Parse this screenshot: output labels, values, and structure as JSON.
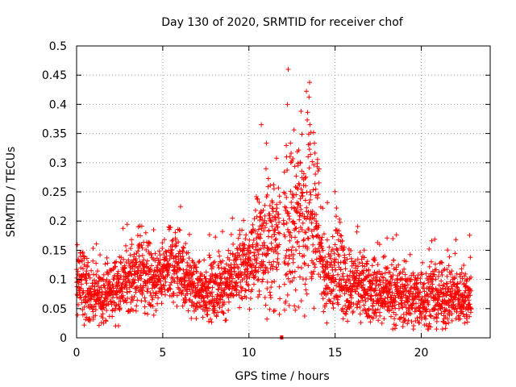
{
  "chart_data": {
    "type": "scatter",
    "title": "Day 130 of 2020, SRMTID for receiver chof",
    "xlabel": "GPS time / hours",
    "ylabel": "SRMTID / TECUs",
    "xlim": [
      0,
      24
    ],
    "ylim": [
      0,
      0.5
    ],
    "xticks": [
      0,
      5,
      10,
      15,
      20
    ],
    "xtick_labels": [
      "0",
      "5",
      "10",
      "15",
      "20"
    ],
    "yticks": [
      0,
      0.05,
      0.1,
      0.15,
      0.2,
      0.25,
      0.3,
      0.35,
      0.4,
      0.45,
      0.5
    ],
    "ytick_labels": [
      "0",
      "0.05",
      "0.1",
      "0.15",
      "0.2",
      "0.25",
      "0.3",
      "0.35",
      "0.4",
      "0.45",
      "0.5"
    ],
    "grid": true,
    "marker": "+",
    "color": "#ff0000",
    "marker_note": "approximately 3000 '+' points sampled every ~30 s from 0 to 22.9 h",
    "envelope": {
      "x": [
        0,
        0.3,
        0.6,
        1,
        2,
        3,
        3.8,
        4.5,
        5,
        5.8,
        6.3,
        7,
        8,
        9,
        9.5,
        10,
        10.5,
        11,
        11.5,
        12,
        12.5,
        13,
        13.5,
        14,
        14.3,
        14.6,
        15,
        15.3,
        15.6,
        16,
        17,
        18,
        19,
        20,
        21,
        22,
        22.9
      ],
      "center": [
        0.09,
        0.11,
        0.08,
        0.07,
        0.08,
        0.1,
        0.12,
        0.09,
        0.11,
        0.13,
        0.1,
        0.08,
        0.08,
        0.1,
        0.12,
        0.13,
        0.15,
        0.17,
        0.16,
        0.18,
        0.2,
        0.22,
        0.25,
        0.21,
        0.12,
        0.1,
        0.11,
        0.12,
        0.08,
        0.09,
        0.08,
        0.08,
        0.07,
        0.07,
        0.07,
        0.07,
        0.07
      ],
      "spread": [
        0.05,
        0.07,
        0.05,
        0.04,
        0.05,
        0.05,
        0.07,
        0.05,
        0.05,
        0.07,
        0.05,
        0.04,
        0.05,
        0.05,
        0.07,
        0.07,
        0.08,
        0.12,
        0.1,
        0.12,
        0.14,
        0.14,
        0.17,
        0.13,
        0.08,
        0.06,
        0.1,
        0.12,
        0.05,
        0.05,
        0.05,
        0.05,
        0.05,
        0.05,
        0.05,
        0.05,
        0.05
      ]
    },
    "gap_hours": [
      11.8,
      12.0
    ],
    "gap_marker_x": 11.9,
    "gap_marker_y": 0
  }
}
